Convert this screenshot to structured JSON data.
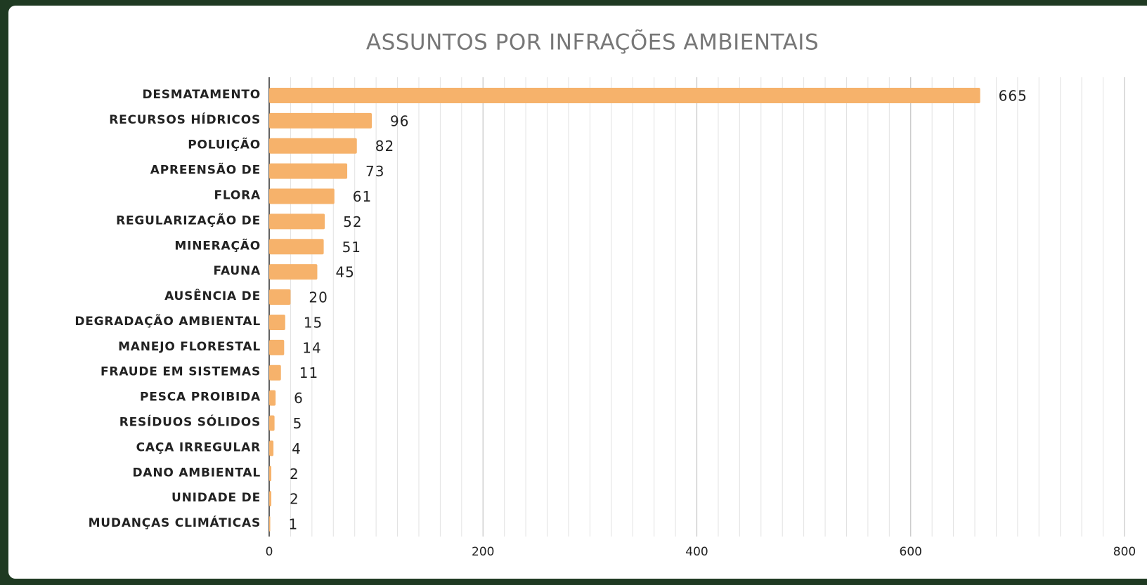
{
  "chart_data": {
    "type": "bar",
    "orientation": "horizontal",
    "title": "ASSUNTOS POR INFRAÇÕES AMBIENTAIS",
    "categories": [
      "DESMATAMENTO",
      "RECURSOS HÍDRICOS",
      "POLUIÇÃO",
      "APREENSÃO DE",
      "FLORA",
      "REGULARIZAÇÃO DE",
      "MINERAÇÃO",
      "FAUNA",
      "AUSÊNCIA DE",
      "DEGRADAÇÃO AMBIENTAL",
      "MANEJO FLORESTAL",
      "FRAUDE EM SISTEMAS",
      "PESCA PROIBIDA",
      "RESÍDUOS SÓLIDOS",
      "CAÇA IRREGULAR",
      "DANO AMBIENTAL",
      "UNIDADE DE",
      "MUDANÇAS CLIMÁTICAS"
    ],
    "values": [
      665,
      96,
      82,
      73,
      61,
      52,
      51,
      45,
      20,
      15,
      14,
      11,
      6,
      5,
      4,
      2,
      2,
      1
    ],
    "color": "#f6b26b",
    "xlim": [
      0,
      800
    ],
    "xticks": [
      0,
      200,
      400,
      600,
      800
    ],
    "grid": true,
    "minor_grid": true
  }
}
